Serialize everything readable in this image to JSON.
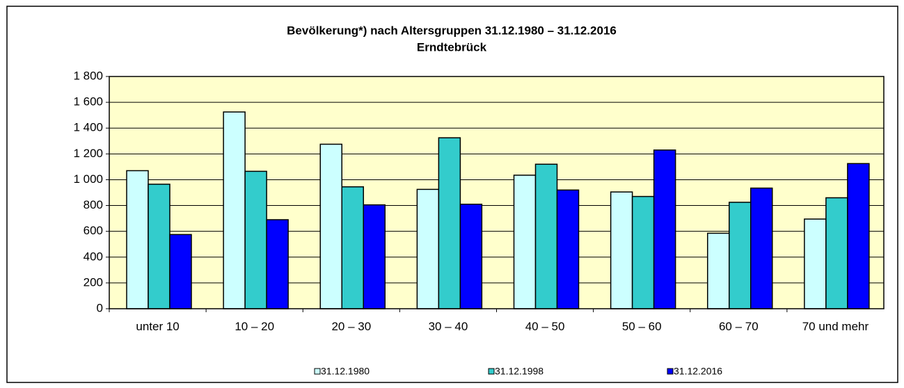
{
  "chart_data": {
    "type": "bar",
    "title": "Bevölkerung*) nach Altersgruppen 31.12.1980 – 31.12.2016",
    "subtitle": "Erndtebrück",
    "categories": [
      "unter 10",
      "10 – 20",
      "20 – 30",
      "30 – 40",
      "40 – 50",
      "50 – 60",
      "60 – 70",
      "70 und mehr"
    ],
    "series": [
      {
        "name": "31.12.1980",
        "color": "#ccffff",
        "values": [
          1070,
          1525,
          1275,
          925,
          1035,
          905,
          585,
          695
        ]
      },
      {
        "name": "31.12.1998",
        "color": "#33cccc",
        "values": [
          965,
          1065,
          945,
          1325,
          1120,
          870,
          825,
          860
        ]
      },
      {
        "name": "31.12.2016",
        "color": "#0000ff",
        "values": [
          575,
          690,
          805,
          810,
          920,
          1230,
          935,
          1125
        ]
      }
    ],
    "ylim": [
      0,
      1800
    ],
    "yticks": [
      0,
      200,
      400,
      600,
      800,
      {
        "value": 1000,
        "label": "1 000"
      },
      {
        "value": 1200,
        "label": "1 200"
      },
      {
        "value": 1400,
        "label": "1 400"
      },
      {
        "value": 1600,
        "label": "1 600"
      },
      {
        "value": 1800,
        "label": "1 800"
      }
    ],
    "grid": true,
    "plot_background": "#ffffcc",
    "legend": "bottom"
  }
}
